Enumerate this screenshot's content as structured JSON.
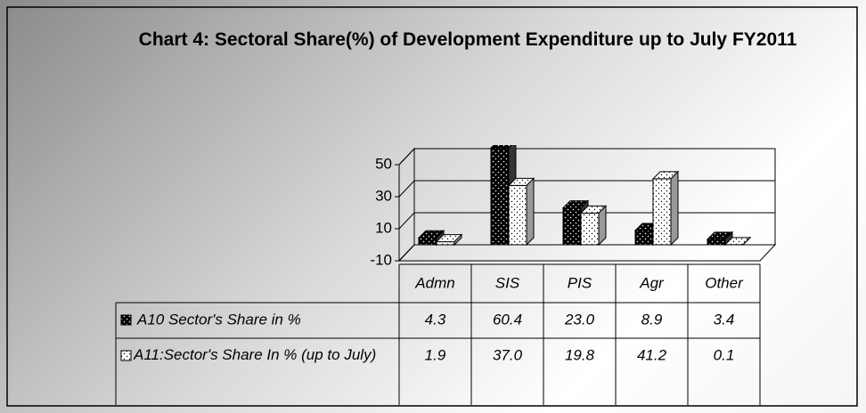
{
  "chart_data": {
    "type": "bar3d",
    "title": "Chart 4: Sectoral Share(%) of Development Expenditure up to July FY2011",
    "categories": [
      "Admn",
      "SIS",
      "PIS",
      "Agr",
      "Other"
    ],
    "series": [
      {
        "name": "A10 Sector's Share in %",
        "color": "#000000",
        "values": [
          4.3,
          60.4,
          23.0,
          8.9,
          3.4
        ],
        "value_labels": [
          "4.3",
          "60.4",
          "23.0",
          "8.9",
          "3.4"
        ]
      },
      {
        "name": "A11:Sector's Share In % (up to July)",
        "color": "#ffffff",
        "values": [
          1.9,
          37.0,
          19.8,
          41.2,
          0.1
        ],
        "value_labels": [
          "1.9",
          "37.0",
          "19.8",
          "41.2",
          "0.1"
        ]
      }
    ],
    "ylim": [
      -10,
      50
    ],
    "yticks": [
      -10,
      10,
      30,
      50
    ],
    "grid": true
  }
}
